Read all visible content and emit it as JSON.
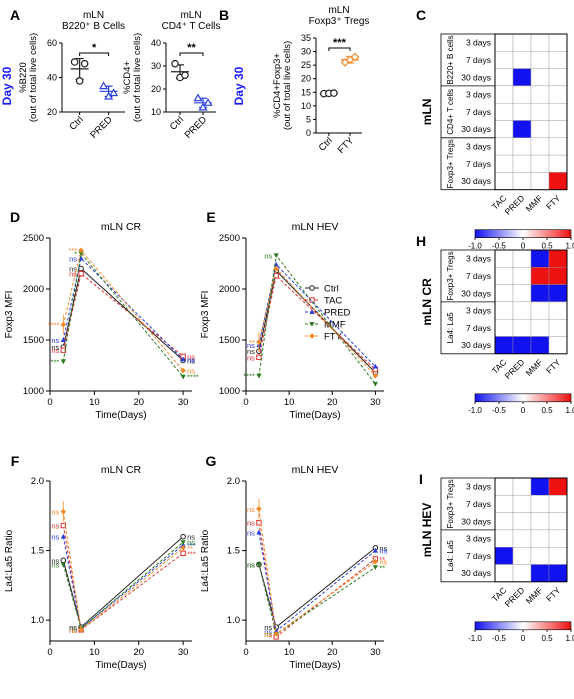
{
  "colors": {
    "axis": "#000000",
    "day30": "#1a1aff",
    "series": {
      "Ctrl": "#222222",
      "TAC": "#e0302f",
      "PRED": "#2a3fe0",
      "MMF": "#2d7a1f",
      "FTY": "#f28a2a"
    },
    "heat_neg": "#1212f0",
    "heat_pos": "#ee1111",
    "tri": "#2a3fe0",
    "diamond": "#f28a2a"
  },
  "panel_letters": [
    "A",
    "B",
    "C",
    "D",
    "E",
    "F",
    "G",
    "H",
    "I"
  ],
  "row_label": "Day 30",
  "chart_data": [
    {
      "id": "A1",
      "type": "scatter",
      "title": "mLN",
      "subtitle": "B220⁺ B Cells",
      "ylabel": "%B220",
      "ylabel2": "(out of total live cells)",
      "categories": [
        "Ctrl",
        "PRED"
      ],
      "yticks": [
        "20",
        "40",
        "60"
      ],
      "ylim": [
        20,
        60
      ],
      "points": [
        [
          49,
          38,
          48
        ],
        [
          35,
          29,
          31
        ]
      ],
      "mean": [
        45,
        32
      ],
      "sd": [
        6,
        3
      ],
      "sig": "*"
    },
    {
      "id": "A2",
      "type": "scatter",
      "title": "mLN",
      "subtitle": "CD4⁺ T Cells",
      "ylabel": "%CD4+",
      "ylabel2": "(out of total live cells)",
      "categories": [
        "Ctrl",
        "PRED"
      ],
      "yticks": [
        "10",
        "20",
        "30",
        "40"
      ],
      "ylim": [
        10,
        40
      ],
      "points": [
        [
          31,
          25,
          26
        ],
        [
          16,
          12,
          14
        ]
      ],
      "mean": [
        27.5,
        14
      ],
      "sd": [
        3,
        2
      ],
      "sig": "**"
    },
    {
      "id": "B",
      "type": "scatter",
      "title": "mLN",
      "subtitle": "Foxp3⁺ Tregs",
      "ylabel": "%CD4+Foxp3+",
      "ylabel2": "(out of total live cells)",
      "categories": [
        "Ctrl",
        "FTY"
      ],
      "yticks": [
        "0",
        "5",
        "10",
        "15",
        "20",
        "25",
        "30",
        "35"
      ],
      "ylim": [
        0,
        35
      ],
      "points": [
        [
          14.5,
          14.6,
          14.7
        ],
        [
          26,
          27,
          28
        ]
      ],
      "mean": [
        14.6,
        27
      ],
      "sd": [
        0.3,
        1.2
      ],
      "sig": "***"
    },
    {
      "id": "C",
      "type": "heatmap",
      "title": "mLN",
      "groups": [
        "B220+ B cells",
        "CD4+ T cells",
        "Foxp3+ Tregs"
      ],
      "rows": [
        "3 days",
        "7 days",
        "30 days",
        "3 days",
        "7 days",
        "30 days",
        "3 days",
        "7 days",
        "30 days"
      ],
      "columns": [
        "TAC",
        "PRED",
        "MMF",
        "FTY"
      ],
      "values": [
        [
          0,
          0,
          0,
          0
        ],
        [
          0,
          0,
          0,
          0
        ],
        [
          0,
          -1,
          0,
          0
        ],
        [
          0,
          0,
          0,
          0
        ],
        [
          0,
          0,
          0,
          0
        ],
        [
          0,
          -1,
          0,
          0
        ],
        [
          0,
          0,
          0,
          0
        ],
        [
          0,
          0,
          0,
          0
        ],
        [
          0,
          0,
          0,
          1
        ]
      ],
      "scale": [
        "-1.0",
        "-0.5",
        "0",
        "0.5",
        "1.0"
      ]
    },
    {
      "id": "D",
      "type": "line",
      "title": "mLN CR",
      "ylabel": "Foxp3 MFI",
      "xlabel": "Time(Days)",
      "xticks": [
        "0",
        "10",
        "20",
        "30"
      ],
      "yticks": [
        "1000",
        "1500",
        "2000",
        "2500"
      ],
      "xlim": [
        0,
        32
      ],
      "ylim": [
        1000,
        2500
      ],
      "legend": [
        "Ctrl",
        "TAC",
        "PRED",
        "MMF",
        "FTY"
      ],
      "x": [
        3,
        7,
        30
      ],
      "series": [
        {
          "name": "Ctrl",
          "values": [
            1430,
            2200,
            1300
          ],
          "labels": [
            "ns",
            "ns",
            "ns"
          ]
        },
        {
          "name": "TAC",
          "values": [
            1400,
            2150,
            1340
          ],
          "labels": [
            "ns",
            "ns",
            "ns"
          ]
        },
        {
          "name": "PRED",
          "values": [
            1500,
            2300,
            1310
          ],
          "labels": [
            "ns",
            "ns",
            "ns"
          ]
        },
        {
          "name": "MMF",
          "values": [
            1290,
            2350,
            1140
          ],
          "labels": [
            "***",
            "*",
            "****"
          ]
        },
        {
          "name": "FTY",
          "values": [
            1650,
            2380,
            1200
          ],
          "labels": [
            "****",
            "***",
            "ns"
          ]
        }
      ]
    },
    {
      "id": "E",
      "type": "line",
      "title": "mLN HEV",
      "ylabel": "Foxp3 MFI",
      "xlabel": "Time(Days)",
      "xticks": [
        "0",
        "10",
        "20",
        "30"
      ],
      "yticks": [
        "1000",
        "1500",
        "2000",
        "2500"
      ],
      "xlim": [
        0,
        32
      ],
      "ylim": [
        1000,
        2500
      ],
      "x": [
        3,
        7,
        30
      ],
      "series": [
        {
          "name": "Ctrl",
          "values": [
            1390,
            2180,
            1180
          ],
          "labels": [
            "ns",
            "",
            ""
          ]
        },
        {
          "name": "TAC",
          "values": [
            1330,
            2130,
            1210
          ],
          "labels": [
            "ns",
            "",
            ""
          ]
        },
        {
          "name": "PRED",
          "values": [
            1450,
            2240,
            1240
          ],
          "labels": [
            "ns",
            "",
            ""
          ]
        },
        {
          "name": "MMF",
          "values": [
            1150,
            2330,
            1070
          ],
          "labels": [
            "****",
            "ns",
            ""
          ]
        },
        {
          "name": "FTY",
          "values": [
            1480,
            2200,
            1150
          ],
          "labels": [
            "**",
            "",
            ""
          ]
        }
      ]
    },
    {
      "id": "F",
      "type": "line",
      "title": "mLN CR",
      "ylabel": "La4:La5 Ratio",
      "xlabel": "Time(Days)",
      "xticks": [
        "0",
        "10",
        "20",
        "30"
      ],
      "yticks": [
        "1.0",
        "1.5",
        "2.0"
      ],
      "xlim": [
        0,
        32
      ],
      "ylim": [
        0.85,
        2.0
      ],
      "x": [
        3,
        7,
        30
      ],
      "series": [
        {
          "name": "Ctrl",
          "values": [
            1.43,
            0.95,
            1.6
          ],
          "labels": [
            "ns",
            "ns",
            "ns"
          ]
        },
        {
          "name": "TAC",
          "values": [
            1.68,
            0.93,
            1.48
          ],
          "labels": [
            "ns",
            "ns",
            "***"
          ]
        },
        {
          "name": "PRED",
          "values": [
            1.6,
            0.94,
            1.54
          ],
          "labels": [
            "ns",
            "ns",
            "***"
          ]
        },
        {
          "name": "MMF",
          "values": [
            1.4,
            0.94,
            1.56
          ],
          "labels": [
            "ns",
            "ns",
            "ns"
          ]
        },
        {
          "name": "FTY",
          "values": [
            1.78,
            0.93,
            1.52
          ],
          "labels": [
            "ns",
            "ns",
            "**"
          ]
        }
      ]
    },
    {
      "id": "G",
      "type": "line",
      "title": "mLN HEV",
      "ylabel": "La4:La5 Ratio",
      "xlabel": "Time(Days)",
      "xticks": [
        "0",
        "10",
        "20",
        "30"
      ],
      "yticks": [
        "1.0",
        "1.5",
        "2.0"
      ],
      "xlim": [
        0,
        32
      ],
      "ylim": [
        0.85,
        2.0
      ],
      "x": [
        3,
        7,
        30
      ],
      "series": [
        {
          "name": "Ctrl",
          "values": [
            1.4,
            0.95,
            1.52
          ],
          "labels": [
            "ns",
            "ns",
            "ns"
          ]
        },
        {
          "name": "TAC",
          "values": [
            1.7,
            0.88,
            1.44
          ],
          "labels": [
            "ns",
            "*",
            "**"
          ]
        },
        {
          "name": "PRED",
          "values": [
            1.63,
            0.92,
            1.5
          ],
          "labels": [
            "ns",
            "ns",
            "ns"
          ]
        },
        {
          "name": "MMF",
          "values": [
            1.4,
            0.9,
            1.38
          ],
          "labels": [
            "ns",
            "ns",
            "**"
          ]
        },
        {
          "name": "FTY",
          "values": [
            1.8,
            0.9,
            1.42
          ],
          "labels": [
            "ns",
            "ns",
            "ns"
          ]
        }
      ]
    },
    {
      "id": "H",
      "type": "heatmap",
      "title": "mLN CR",
      "groups": [
        "Foxp3+ Tregs",
        "La4: La5"
      ],
      "rows": [
        "3 days",
        "7 days",
        "30 days",
        "3 days",
        "7 days",
        "30 days"
      ],
      "columns": [
        "TAC",
        "PRED",
        "MMF",
        "FTY"
      ],
      "values": [
        [
          0,
          0,
          -1,
          1
        ],
        [
          0,
          0,
          1,
          1
        ],
        [
          0,
          0,
          -1,
          -1
        ],
        [
          0,
          0,
          0,
          0
        ],
        [
          0,
          0,
          0,
          0
        ],
        [
          -1,
          -1,
          -1,
          0
        ]
      ],
      "scale": [
        "-1.0",
        "-0.5",
        "0",
        "0.5",
        "1.0"
      ]
    },
    {
      "id": "I",
      "type": "heatmap",
      "title": "mLN HEV",
      "groups": [
        "Foxp3+ Tregs",
        "La4: La5"
      ],
      "rows": [
        "3 days",
        "7 days",
        "30 days",
        "3 days",
        "7 days",
        "30 days"
      ],
      "columns": [
        "TAC",
        "PRED",
        "MMF",
        "FTY"
      ],
      "values": [
        [
          0,
          0,
          -1,
          1
        ],
        [
          0,
          0,
          0,
          0
        ],
        [
          0,
          0,
          0,
          0
        ],
        [
          0,
          0,
          0,
          0
        ],
        [
          -1,
          0,
          0,
          0
        ],
        [
          0,
          0,
          -1,
          -1
        ]
      ],
      "scale": [
        "-1.0",
        "-0.5",
        "0",
        "0.5",
        "1.0"
      ]
    }
  ]
}
